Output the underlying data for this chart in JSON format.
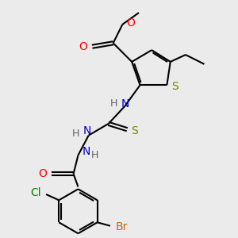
{
  "bg_color": "#ebebeb",
  "bond_color": "#000000",
  "line_width": 1.5,
  "atom_colors": {
    "O": "#ff0000",
    "N": "#0000cd",
    "S_thio": "#808000",
    "S_carbonothio": "#808000",
    "Cl": "#008000",
    "Br": "#cc6600",
    "C": "#000000",
    "H": "#606060"
  },
  "font_size": 9,
  "fig_size": [
    3.0,
    3.0
  ],
  "dpi": 100
}
